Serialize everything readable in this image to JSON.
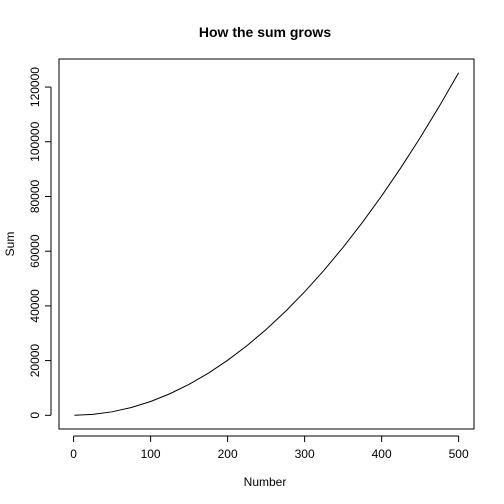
{
  "chart_data": {
    "type": "line",
    "title": "How the sum grows",
    "xlabel": "Number",
    "ylabel": "Sum",
    "xlim": [
      1,
      500
    ],
    "ylim": [
      1,
      125250
    ],
    "x_ticks": [
      0,
      100,
      200,
      300,
      400,
      500
    ],
    "y_ticks": [
      0,
      20000,
      40000,
      60000,
      80000,
      100000,
      120000
    ],
    "x_tick_labels": [
      "0",
      "100",
      "200",
      "300",
      "400",
      "500"
    ],
    "y_tick_labels": [
      "0",
      "20000",
      "40000",
      "60000",
      "80000",
      "100000",
      "120000"
    ],
    "series": [
      {
        "x": [
          1,
          25,
          50,
          75,
          100,
          125,
          150,
          175,
          200,
          225,
          250,
          275,
          300,
          325,
          350,
          375,
          400,
          425,
          450,
          475,
          500
        ],
        "values": [
          1,
          325,
          1275,
          2850,
          5050,
          7875,
          11325,
          15400,
          20100,
          25425,
          31375,
          37950,
          45150,
          52975,
          61425,
          70500,
          80200,
          90525,
          101475,
          113050,
          125250
        ],
        "color": "#000000"
      }
    ],
    "grid": false,
    "box": true
  }
}
